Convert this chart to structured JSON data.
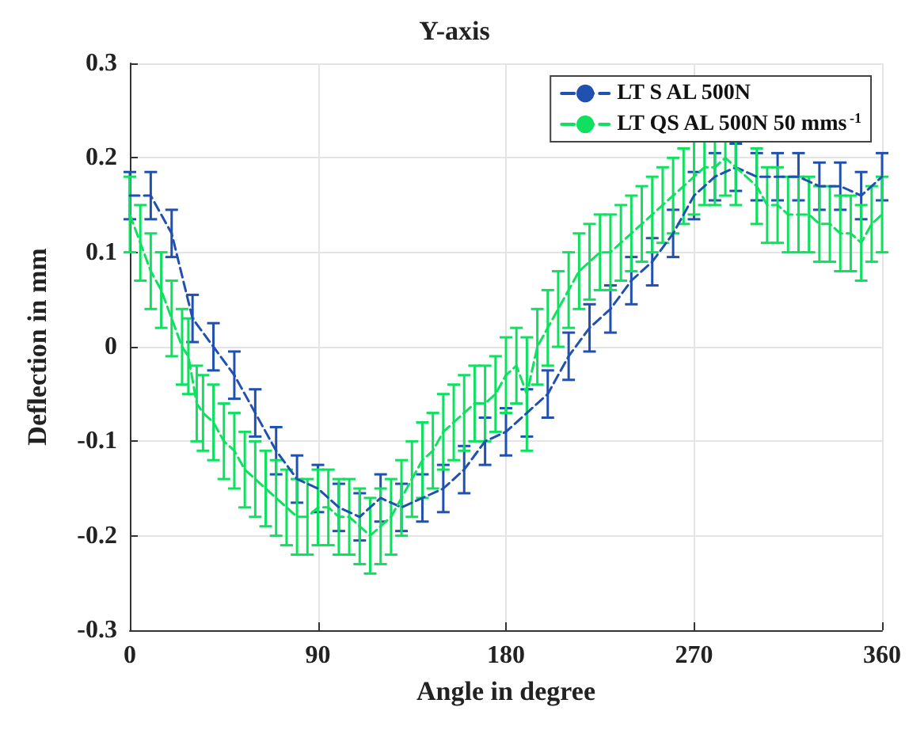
{
  "chart_data": {
    "type": "line",
    "title": "Y-axis",
    "xlabel": "Angle in degree",
    "ylabel": "Deflection in mm",
    "xlim": [
      0,
      360
    ],
    "xticks": [
      0,
      90,
      180,
      270,
      360
    ],
    "ylim": [
      -0.3,
      0.3
    ],
    "yticks": [
      -0.3,
      -0.2,
      -0.1,
      0,
      0.1,
      0.2,
      0.3
    ],
    "grid": true,
    "legend": "top right",
    "marker": "none",
    "line_style": "dashed",
    "series": [
      {
        "name": "LT S AL 500N",
        "color": "#2050b0",
        "x": [
          0,
          10,
          20,
          30,
          40,
          50,
          60,
          70,
          80,
          90,
          100,
          110,
          120,
          130,
          140,
          150,
          160,
          170,
          180,
          190,
          200,
          210,
          220,
          230,
          240,
          250,
          260,
          270,
          280,
          290,
          300,
          310,
          320,
          330,
          340,
          350,
          360
        ],
        "values": [
          0.16,
          0.16,
          0.12,
          0.03,
          0.0,
          -0.03,
          -0.07,
          -0.11,
          -0.14,
          -0.15,
          -0.17,
          -0.18,
          -0.16,
          -0.17,
          -0.16,
          -0.15,
          -0.13,
          -0.1,
          -0.09,
          -0.07,
          -0.05,
          -0.01,
          0.02,
          0.04,
          0.07,
          0.09,
          0.12,
          0.16,
          0.18,
          0.19,
          0.18,
          0.18,
          0.18,
          0.17,
          0.17,
          0.16,
          0.18
        ],
        "errors": [
          0.025,
          0.025,
          0.025,
          0.025,
          0.025,
          0.025,
          0.025,
          0.025,
          0.025,
          0.025,
          0.025,
          0.025,
          0.025,
          0.025,
          0.025,
          0.025,
          0.025,
          0.025,
          0.025,
          0.025,
          0.025,
          0.025,
          0.025,
          0.025,
          0.025,
          0.025,
          0.025,
          0.025,
          0.025,
          0.025,
          0.025,
          0.025,
          0.025,
          0.025,
          0.025,
          0.025,
          0.025
        ]
      },
      {
        "name": "LT QS AL 500N 50 mms$^{-1}$",
        "color": "#10e060",
        "x": [
          0,
          5,
          10,
          15,
          20,
          25,
          28,
          32,
          35,
          40,
          45,
          50,
          55,
          60,
          65,
          70,
          75,
          80,
          85,
          90,
          95,
          100,
          105,
          110,
          115,
          120,
          125,
          130,
          135,
          140,
          145,
          150,
          155,
          160,
          165,
          170,
          175,
          180,
          185,
          190,
          195,
          200,
          205,
          210,
          215,
          220,
          225,
          230,
          235,
          240,
          245,
          250,
          255,
          260,
          265,
          270,
          275,
          280,
          285,
          290,
          300,
          305,
          310,
          315,
          320,
          325,
          330,
          335,
          340,
          345,
          350,
          355,
          360
        ],
        "values": [
          0.14,
          0.11,
          0.08,
          0.06,
          0.03,
          0.0,
          -0.01,
          -0.06,
          -0.07,
          -0.08,
          -0.1,
          -0.11,
          -0.13,
          -0.14,
          -0.15,
          -0.16,
          -0.17,
          -0.18,
          -0.18,
          -0.17,
          -0.17,
          -0.18,
          -0.18,
          -0.19,
          -0.2,
          -0.19,
          -0.18,
          -0.16,
          -0.14,
          -0.12,
          -0.11,
          -0.09,
          -0.08,
          -0.07,
          -0.06,
          -0.06,
          -0.05,
          -0.03,
          -0.02,
          -0.05,
          0.0,
          0.02,
          0.04,
          0.06,
          0.08,
          0.09,
          0.1,
          0.1,
          0.11,
          0.12,
          0.13,
          0.14,
          0.15,
          0.16,
          0.17,
          0.18,
          0.19,
          0.19,
          0.2,
          0.19,
          0.17,
          0.15,
          0.15,
          0.14,
          0.14,
          0.14,
          0.13,
          0.13,
          0.12,
          0.12,
          0.11,
          0.13,
          0.14
        ],
        "errors": [
          0.04,
          0.04,
          0.04,
          0.04,
          0.04,
          0.04,
          0.04,
          0.04,
          0.04,
          0.04,
          0.04,
          0.04,
          0.04,
          0.04,
          0.04,
          0.04,
          0.04,
          0.04,
          0.04,
          0.04,
          0.04,
          0.04,
          0.04,
          0.04,
          0.04,
          0.04,
          0.04,
          0.04,
          0.04,
          0.04,
          0.04,
          0.04,
          0.04,
          0.04,
          0.04,
          0.04,
          0.04,
          0.04,
          0.04,
          0.06,
          0.04,
          0.04,
          0.04,
          0.04,
          0.04,
          0.04,
          0.04,
          0.04,
          0.04,
          0.04,
          0.04,
          0.04,
          0.04,
          0.04,
          0.04,
          0.04,
          0.04,
          0.04,
          0.04,
          0.04,
          0.04,
          0.04,
          0.04,
          0.04,
          0.04,
          0.04,
          0.04,
          0.04,
          0.04,
          0.04,
          0.04,
          0.04,
          0.04
        ]
      }
    ]
  }
}
